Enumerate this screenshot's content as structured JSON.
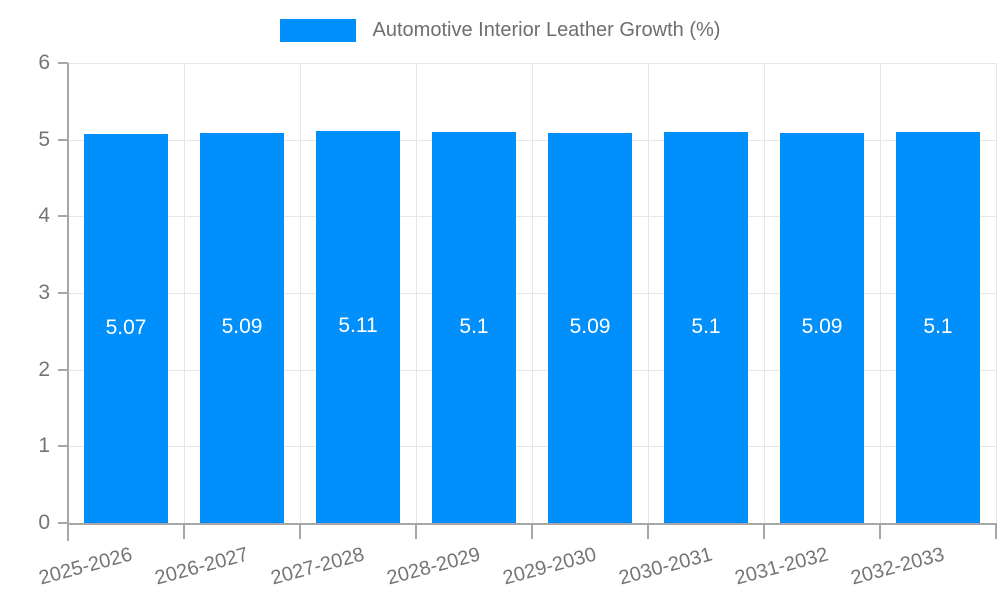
{
  "legend": {
    "label": "Automotive Interior Leather Growth (%)"
  },
  "chart_data": {
    "type": "bar",
    "title": "Automotive Interior Leather Growth (%)",
    "categories": [
      "2025-2026",
      "2026-2027",
      "2027-2028",
      "2028-2029",
      "2029-2030",
      "2030-2031",
      "2031-2032",
      "2032-2033"
    ],
    "values": [
      5.07,
      5.09,
      5.11,
      5.1,
      5.09,
      5.1,
      5.09,
      5.1
    ],
    "xlabel": "",
    "ylabel": "",
    "ylim": [
      0,
      6
    ],
    "yticks": [
      0,
      1,
      2,
      3,
      4,
      5,
      6
    ],
    "grid": "horizontal and vertical gridlines on",
    "legend_position": "top-center",
    "bar_color": "#008FFB",
    "bar_label_color": "#ffffff",
    "axis_color": "#a6a6a6",
    "gridline_color": "#e6e6e6",
    "tick_label_color": "#757575"
  }
}
